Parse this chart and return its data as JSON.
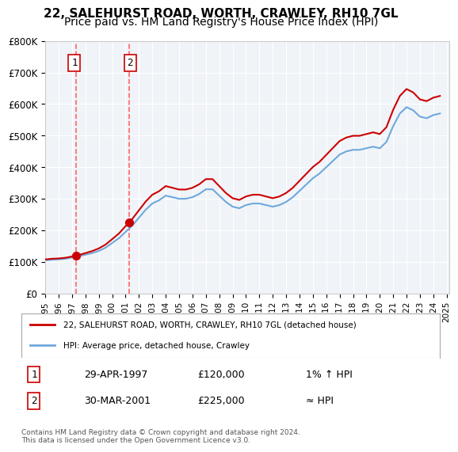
{
  "title": "22, SALEHURST ROAD, WORTH, CRAWLEY, RH10 7GL",
  "subtitle": "Price paid vs. HM Land Registry's House Price Index (HPI)",
  "xlabel": "",
  "ylabel": "",
  "ylim": [
    0,
    800000
  ],
  "yticks": [
    0,
    100000,
    200000,
    300000,
    400000,
    500000,
    600000,
    700000,
    800000
  ],
  "ytick_labels": [
    "£0",
    "£100K",
    "£200K",
    "£300K",
    "£400K",
    "£500K",
    "£600K",
    "£700K",
    "£800K"
  ],
  "sale1_date": 1997.33,
  "sale1_price": 120000,
  "sale1_label": "1",
  "sale1_label_date": 1997.0,
  "sale2_date": 2001.25,
  "sale2_price": 225000,
  "sale2_label": "2",
  "sale2_label_date": 2001.0,
  "hpi_color": "#6fa8dc",
  "sale_color": "#cc0000",
  "vline_color": "#ff6666",
  "background_color": "#ffffff",
  "plot_bg_color": "#f0f4f8",
  "grid_color": "#ffffff",
  "legend_label_sale": "22, SALEHURST ROAD, WORTH, CRAWLEY, RH10 7GL (detached house)",
  "legend_label_hpi": "HPI: Average price, detached house, Crawley",
  "table_row1": [
    "1",
    "29-APR-1997",
    "£120,000",
    "1% ↑ HPI"
  ],
  "table_row2": [
    "2",
    "30-MAR-2001",
    "£225,000",
    "≈ HPI"
  ],
  "footnote": "Contains HM Land Registry data © Crown copyright and database right 2024.\nThis data is licensed under the Open Government Licence v3.0.",
  "title_fontsize": 11,
  "subtitle_fontsize": 10
}
